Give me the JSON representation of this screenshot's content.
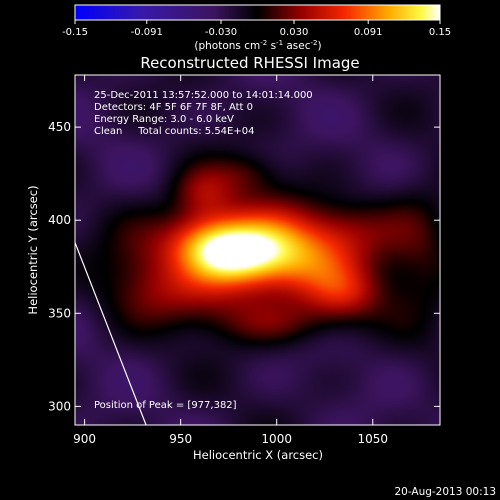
{
  "chart_data": {
    "type": "heatmap",
    "title": "Reconstructed RHESSI Image",
    "xlabel": "Heliocentric X (arcsec)",
    "ylabel": "Heliocentric Y (arcsec)",
    "xlim": [
      895,
      1085
    ],
    "ylim": [
      290,
      478
    ],
    "x_ticks": [
      "900",
      "950",
      "1000",
      "1050"
    ],
    "x_tick_values": [
      900,
      950,
      1000,
      1050
    ],
    "y_ticks": [
      "300",
      "350",
      "400",
      "450"
    ],
    "y_tick_values": [
      300,
      350,
      400,
      450
    ],
    "colorbar": {
      "tick_labels": [
        "-0.15",
        "-0.091",
        "-0.030",
        "0.030",
        "0.091",
        "0.15"
      ],
      "tick_values": [
        -0.15,
        -0.091,
        -0.03,
        0.03,
        0.091,
        0.15
      ],
      "range": [
        -0.15,
        0.15
      ],
      "units_text": "(photons cm",
      "units_exp1": "-2",
      "units_mid": " s",
      "units_exp2": "-1",
      "units_tail": " asec",
      "units_exp3": "-2",
      "units_close": ")"
    },
    "annotations": [
      "25-Dec-2011 13:57:52.000 to 14:01:14.000",
      "Detectors: 4F 5F 6F 7F 8F, Att 0",
      "Energy Range: 3.0 - 6.0 keV",
      "Clean     Total counts: 5.54E+04"
    ],
    "peak_label": "Position of Peak = [977,382]",
    "peak": [
      977,
      382
    ],
    "limb_line": [
      [
        895,
        388
      ],
      [
        932,
        290
      ]
    ],
    "sources": [
      {
        "x": 977,
        "y": 382,
        "sx": 18,
        "sy": 12,
        "amp": 0.13
      },
      {
        "x": 960,
        "y": 390,
        "sx": 15,
        "sy": 12,
        "amp": 0.06
      },
      {
        "x": 998,
        "y": 388,
        "sx": 22,
        "sy": 16,
        "amp": 0.075
      },
      {
        "x": 962,
        "y": 415,
        "sx": 12,
        "sy": 10,
        "amp": 0.055
      },
      {
        "x": 955,
        "y": 360,
        "sx": 25,
        "sy": 12,
        "amp": 0.045
      },
      {
        "x": 1015,
        "y": 375,
        "sx": 22,
        "sy": 14,
        "amp": 0.06
      },
      {
        "x": 1035,
        "y": 360,
        "sx": 14,
        "sy": 10,
        "amp": 0.055
      },
      {
        "x": 1040,
        "y": 395,
        "sx": 18,
        "sy": 12,
        "amp": 0.04
      },
      {
        "x": 1075,
        "y": 385,
        "sx": 14,
        "sy": 24,
        "amp": 0.04
      },
      {
        "x": 930,
        "y": 380,
        "sx": 16,
        "sy": 18,
        "amp": 0.035
      },
      {
        "x": 1000,
        "y": 345,
        "sx": 26,
        "sy": 9,
        "amp": 0.04
      },
      {
        "x": 985,
        "y": 425,
        "sx": 12,
        "sy": 8,
        "amp": 0.03
      }
    ],
    "background_level": -0.025,
    "background_noise": 0.012
  },
  "footer": {
    "date": "20-Aug-2013 00:13"
  }
}
